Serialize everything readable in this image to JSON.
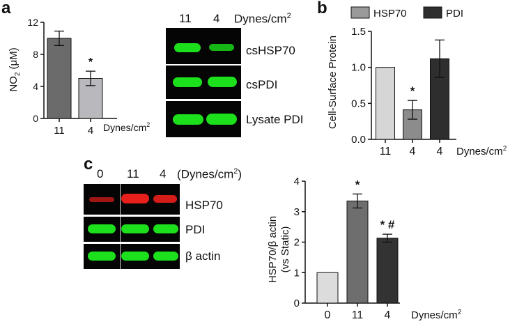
{
  "panels": {
    "a": {
      "letter": "a",
      "chart": {
        "type": "bar",
        "categories": [
          "11",
          "4"
        ],
        "values": [
          10.0,
          5.0
        ],
        "errors": [
          0.9,
          0.9
        ],
        "significance": [
          "",
          "*"
        ],
        "ylabel_main": "NO",
        "ylabel_sub": "2",
        "ylabel_unit": " (μM)",
        "ylim": [
          0,
          12
        ],
        "yticks": [
          "0",
          "4",
          "8",
          "12"
        ],
        "xunit": "Dynes/cm",
        "xunit_sup": "2",
        "colors": [
          "#6b6b6b",
          "#b9b9bd"
        ]
      },
      "blot": {
        "lanes": [
          "11",
          "4"
        ],
        "unit": "Dynes/cm",
        "unit_sup": "2",
        "rows": [
          {
            "label": "csHSP70",
            "color": "#1de01d"
          },
          {
            "label": "csPDI",
            "color": "#1de01d"
          },
          {
            "label": "Lysate PDI",
            "color": "#1de01d"
          }
        ]
      }
    },
    "b": {
      "letter": "b",
      "chart": {
        "type": "bar",
        "categories": [
          "11",
          "4",
          "4"
        ],
        "values": [
          1.0,
          0.41,
          1.12
        ],
        "errors": [
          0.0,
          0.13,
          0.26
        ],
        "significance": [
          "",
          "*",
          ""
        ],
        "legend": [
          {
            "name": "HSP70",
            "color": "#9a9a9a"
          },
          {
            "name": "PDI",
            "color": "#2e2e2e"
          }
        ],
        "colors": [
          "#d6d6d6",
          "#8c8c8c",
          "#2e2e2e"
        ],
        "ylabel": "Cell-Surface Protein",
        "ylim": [
          0,
          1.5
        ],
        "yticks": [
          "0.0",
          "0.5",
          "1.0",
          "1.5"
        ],
        "xunit": "Dynes/cm",
        "xunit_sup": "2"
      }
    },
    "c": {
      "letter": "c",
      "blot": {
        "lanes": [
          "0",
          "11",
          "4"
        ],
        "unit": "(Dynes/cm",
        "unit_sup": "2",
        "unit_close": ")",
        "rows": [
          {
            "label": "HSP70",
            "color": "#e8201c"
          },
          {
            "label": "PDI",
            "color": "#1de01d"
          },
          {
            "label": "β actin",
            "color": "#1de01d"
          }
        ]
      },
      "chart": {
        "type": "bar",
        "categories": [
          "0",
          "11",
          "4"
        ],
        "values": [
          1.0,
          3.35,
          2.13
        ],
        "errors": [
          0.0,
          0.23,
          0.13
        ],
        "significance": [
          "",
          "*",
          "* #"
        ],
        "colors": [
          "#dcdcdc",
          "#6e6e6e",
          "#333333"
        ],
        "ylabel_line1": "HSP70/β actin",
        "ylabel_line2": "(vs Static)",
        "ylim": [
          0,
          4
        ],
        "yticks": [
          "0",
          "1",
          "2",
          "3",
          "4"
        ],
        "xunit": "Dynes/cm",
        "xunit_sup": "2"
      }
    }
  }
}
